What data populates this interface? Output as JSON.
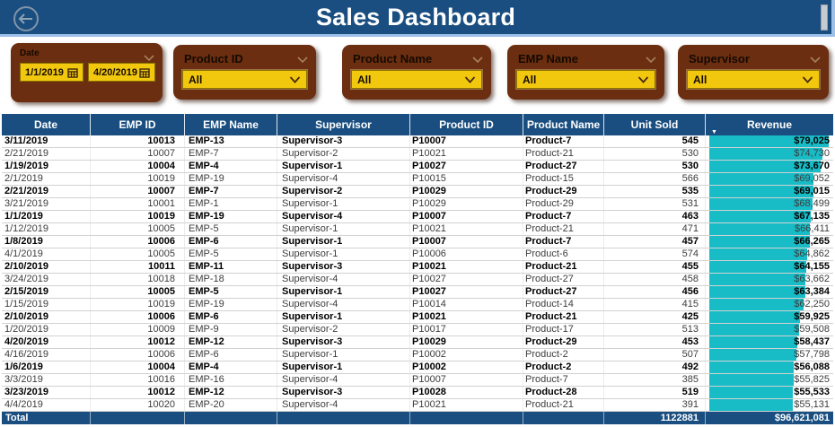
{
  "header": {
    "title": "Sales Dashboard",
    "back_icon": "arrow-left-circle",
    "scrollbar": "vertical-scrollbar-thumb"
  },
  "filters": {
    "date": {
      "label": "Date",
      "start_value": "1/1/2019",
      "end_value": "4/20/2019",
      "calendar_icon": "calendar"
    },
    "dropdowns": [
      {
        "key": "product-id",
        "label": "Product ID",
        "value": "All"
      },
      {
        "key": "product-name",
        "label": "Product Name",
        "value": "All"
      },
      {
        "key": "emp-name",
        "label": "EMP Name",
        "value": "All"
      },
      {
        "key": "supervisor",
        "label": "Supervisor",
        "value": "All"
      }
    ]
  },
  "table": {
    "columns": [
      "Date",
      "EMP ID",
      "EMP Name",
      "Supervisor",
      "Product ID",
      "Product Name",
      "Unit Sold",
      "Revenue"
    ],
    "column_keys": [
      "date",
      "emp-id",
      "emp-name",
      "supervisor",
      "product-id",
      "product-name",
      "unit-sold",
      "revenue"
    ],
    "sorted_column": "Revenue",
    "sort_direction": "descending",
    "rows": [
      [
        "3/11/2019",
        "10013",
        "EMP-13",
        "Supervisor-3",
        "P10007",
        "Product-7",
        "545",
        "$79,025"
      ],
      [
        "2/21/2019",
        "10007",
        "EMP-7",
        "Supervisor-2",
        "P10021",
        "Product-21",
        "530",
        "$74,730"
      ],
      [
        "1/19/2019",
        "10004",
        "EMP-4",
        "Supervisor-1",
        "P10027",
        "Product-27",
        "530",
        "$73,670"
      ],
      [
        "2/1/2019",
        "10019",
        "EMP-19",
        "Supervisor-4",
        "P10015",
        "Product-15",
        "566",
        "$69,052"
      ],
      [
        "2/21/2019",
        "10007",
        "EMP-7",
        "Supervisor-2",
        "P10029",
        "Product-29",
        "535",
        "$69,015"
      ],
      [
        "3/21/2019",
        "10001",
        "EMP-1",
        "Supervisor-1",
        "P10029",
        "Product-29",
        "531",
        "$68,499"
      ],
      [
        "1/1/2019",
        "10019",
        "EMP-19",
        "Supervisor-4",
        "P10007",
        "Product-7",
        "463",
        "$67,135"
      ],
      [
        "1/12/2019",
        "10005",
        "EMP-5",
        "Supervisor-1",
        "P10021",
        "Product-21",
        "471",
        "$66,411"
      ],
      [
        "1/8/2019",
        "10006",
        "EMP-6",
        "Supervisor-1",
        "P10007",
        "Product-7",
        "457",
        "$66,265"
      ],
      [
        "4/1/2019",
        "10005",
        "EMP-5",
        "Supervisor-1",
        "P10006",
        "Product-6",
        "574",
        "$64,862"
      ],
      [
        "2/10/2019",
        "10011",
        "EMP-11",
        "Supervisor-3",
        "P10021",
        "Product-21",
        "455",
        "$64,155"
      ],
      [
        "3/24/2019",
        "10018",
        "EMP-18",
        "Supervisor-4",
        "P10027",
        "Product-27",
        "458",
        "$63,662"
      ],
      [
        "2/15/2019",
        "10005",
        "EMP-5",
        "Supervisor-1",
        "P10027",
        "Product-27",
        "456",
        "$63,384"
      ],
      [
        "1/15/2019",
        "10019",
        "EMP-19",
        "Supervisor-4",
        "P10014",
        "Product-14",
        "415",
        "$62,250"
      ],
      [
        "2/10/2019",
        "10006",
        "EMP-6",
        "Supervisor-1",
        "P10021",
        "Product-21",
        "425",
        "$59,925"
      ],
      [
        "1/20/2019",
        "10009",
        "EMP-9",
        "Supervisor-2",
        "P10017",
        "Product-17",
        "513",
        "$59,508"
      ],
      [
        "4/20/2019",
        "10012",
        "EMP-12",
        "Supervisor-3",
        "P10029",
        "Product-29",
        "453",
        "$58,437"
      ],
      [
        "4/16/2019",
        "10006",
        "EMP-6",
        "Supervisor-1",
        "P10002",
        "Product-2",
        "507",
        "$57,798"
      ],
      [
        "1/6/2019",
        "10004",
        "EMP-4",
        "Supervisor-1",
        "P10002",
        "Product-2",
        "492",
        "$56,088"
      ],
      [
        "3/3/2019",
        "10016",
        "EMP-16",
        "Supervisor-4",
        "P10007",
        "Product-7",
        "385",
        "$55,825"
      ],
      [
        "3/23/2019",
        "10012",
        "EMP-12",
        "Supervisor-3",
        "P10028",
        "Product-28",
        "519",
        "$55,533"
      ],
      [
        "4/4/2019",
        "10020",
        "EMP-20",
        "Supervisor-4",
        "P10021",
        "Product-21",
        "391",
        "$55,131"
      ]
    ],
    "total": {
      "label": "Total",
      "unit_sold": "1122881",
      "revenue": "$96,621,081"
    }
  },
  "colors": {
    "header_blue": "#1A4E80",
    "slicer_brown": "#6B2E10",
    "slicer_yellow": "#F2C80F",
    "data_bar_teal": "#17BCC7",
    "header_border_light_blue": "#9CC0E8"
  }
}
